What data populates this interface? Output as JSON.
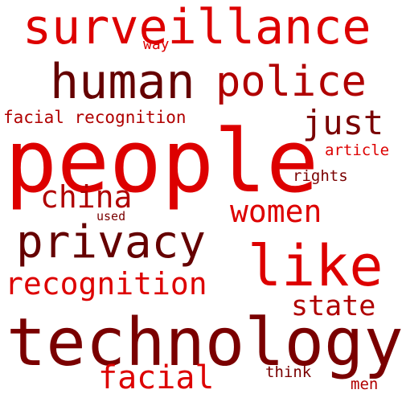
{
  "words": {
    "surveillance": "surveillance",
    "way": "way",
    "human": "human",
    "police": "police",
    "facial_recognition": "facial recognition",
    "just": "just",
    "people": "people",
    "article": "article",
    "rights": "rights",
    "china": "china",
    "women": "women",
    "used": "used",
    "privacy": "privacy",
    "like": "like",
    "recognition": "recognition",
    "state": "state",
    "technology": "technology",
    "facial": "facial",
    "think": "think",
    "men": "men"
  },
  "colors": {
    "bright": "#dd0000",
    "mid": "#b00000",
    "dark": "#7a0000",
    "deep": "#650000"
  }
}
